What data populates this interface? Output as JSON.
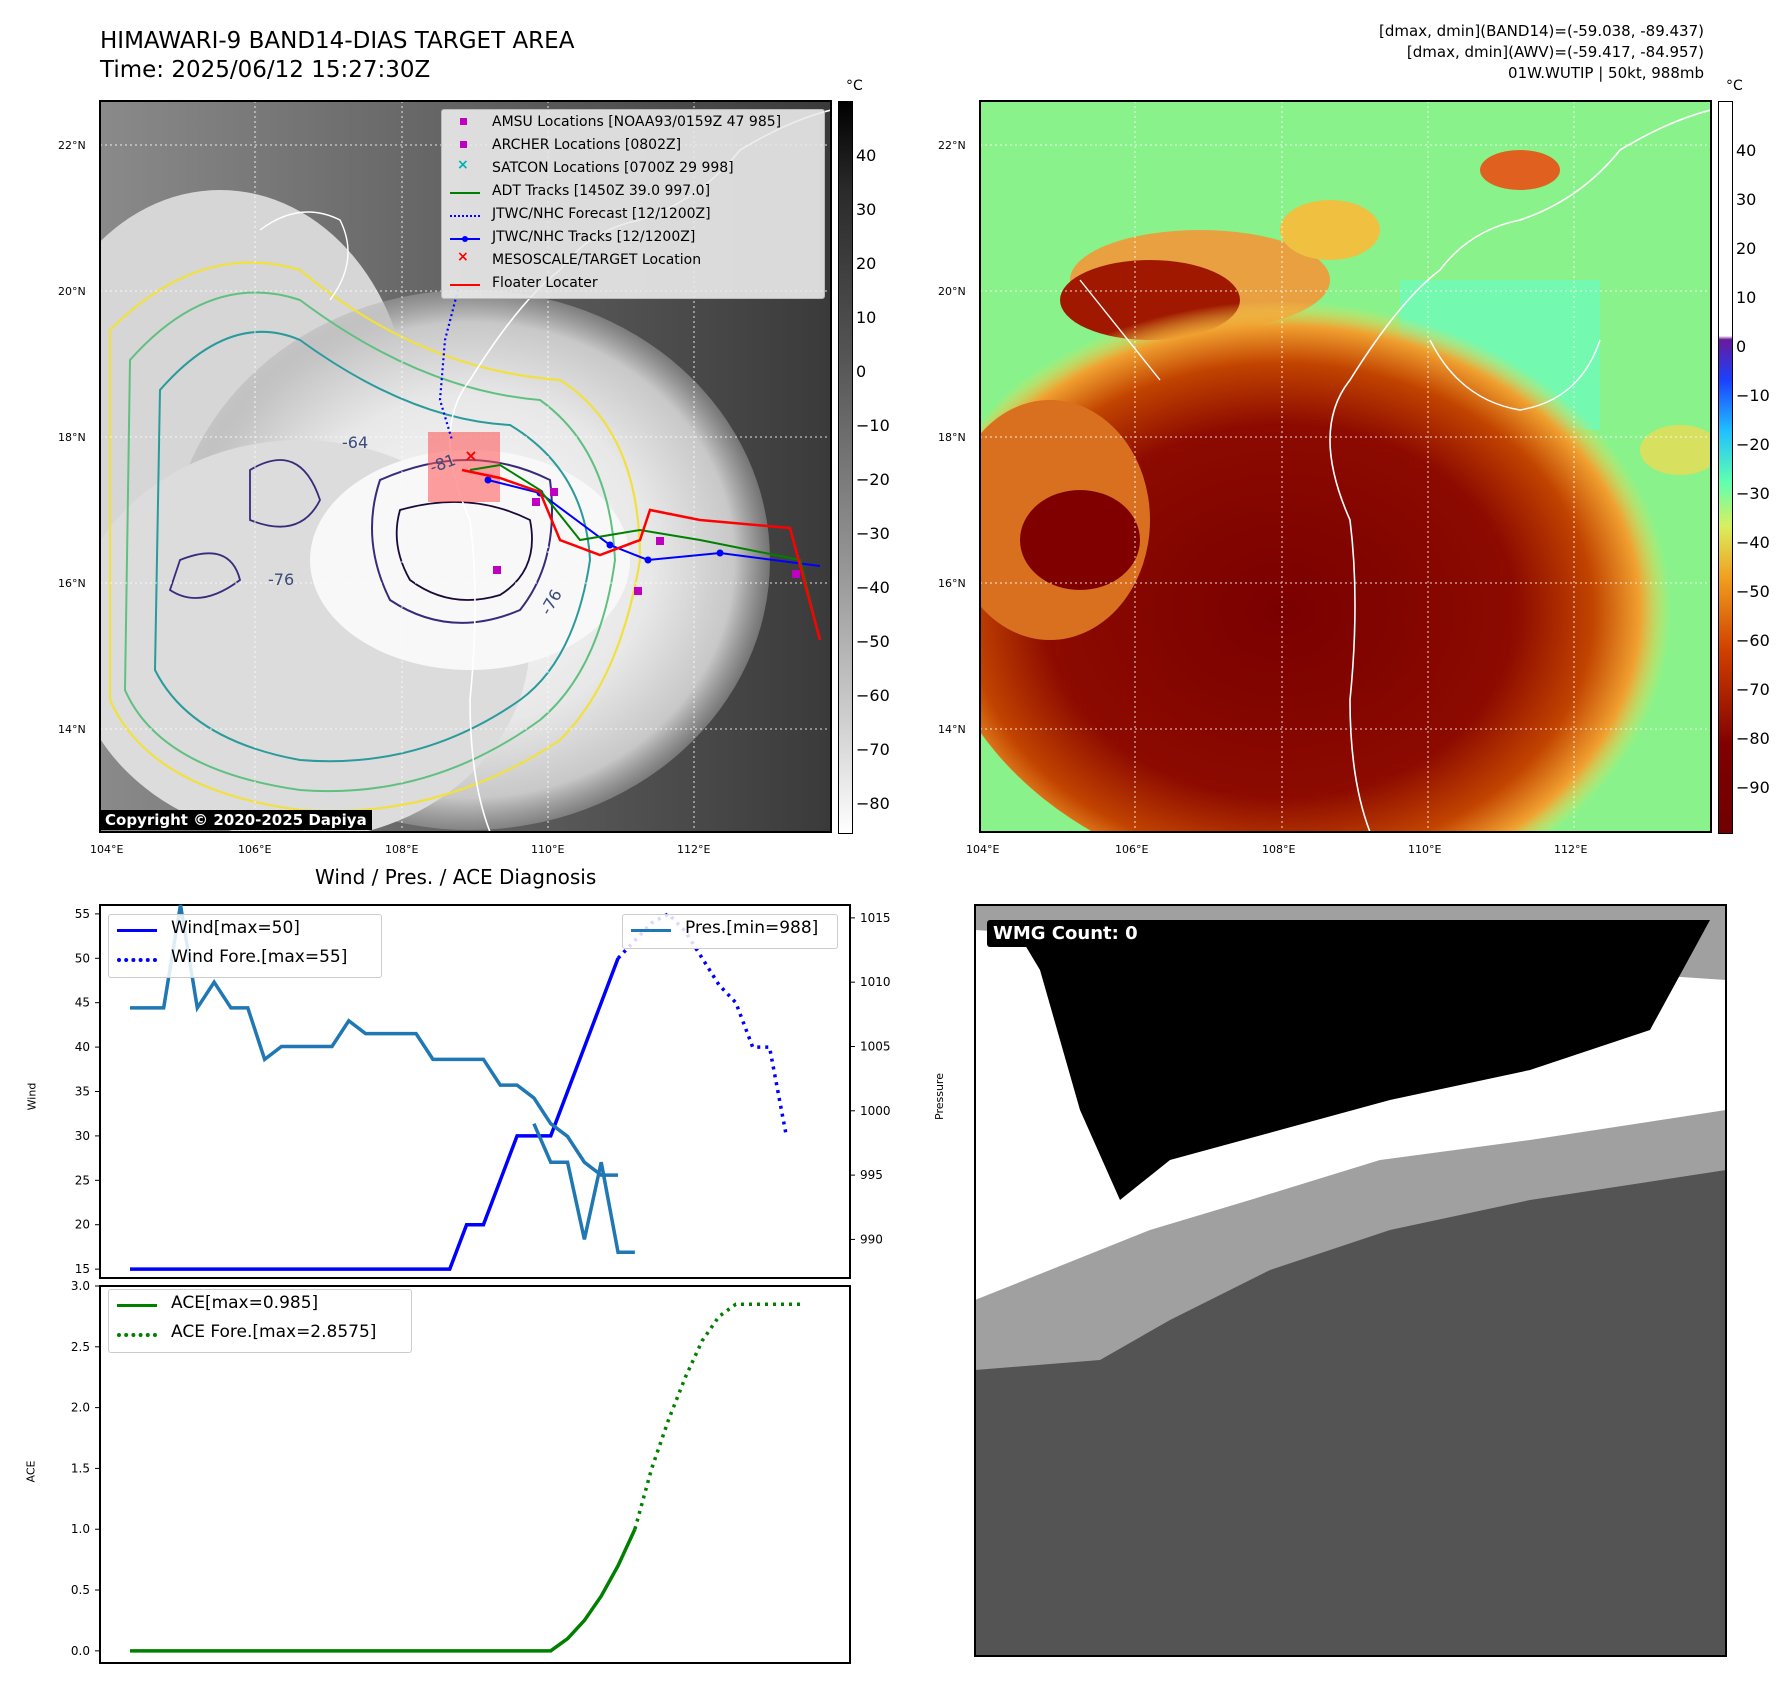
{
  "header": {
    "title": "HIMAWARI-9 BAND14-DIAS TARGET AREA",
    "time": "Time: 2025/06/12 15:27:30Z",
    "stats_band14": "[dmax, dmin](BAND14)=(-59.038, -89.437)",
    "stats_awv": "[dmax, dmin](AWV)=(-59.417, -84.957)",
    "storm": "01W.WUTIP | 50kt, 988mb"
  },
  "map_ir": {
    "lat_labels": [
      "22°N",
      "20°N",
      "18°N",
      "16°N",
      "14°N"
    ],
    "lon_labels": [
      "104°E",
      "106°E",
      "108°E",
      "110°E",
      "112°E"
    ],
    "contour_labels": [
      "-64",
      "-81",
      "-76",
      "-76"
    ],
    "colorbar_unit": "°C",
    "colorbar_ticks": [
      "40",
      "30",
      "20",
      "10",
      "0",
      "−10",
      "−20",
      "−30",
      "−40",
      "−50",
      "−60",
      "−70",
      "−80"
    ],
    "copyright": "Copyright © 2020-2025 Dapiya",
    "legend": [
      {
        "label": "AMSU Locations [NOAA93/0159Z 47 985]",
        "color": "#c000c0",
        "marker": "square"
      },
      {
        "label": "ARCHER Locations [0802Z]",
        "color": "#c000c0",
        "marker": "square"
      },
      {
        "label": "SATCON Locations [0700Z 29 998]",
        "color": "#00b0b0",
        "marker": "x"
      },
      {
        "label": "ADT Tracks [1450Z 39.0 997.0]",
        "color": "#008000",
        "marker": "line"
      },
      {
        "label": "JTWC/NHC Forecast [12/1200Z]",
        "color": "#0000ff",
        "marker": "dotted"
      },
      {
        "label": "JTWC/NHC Tracks [12/1200Z]",
        "color": "#0000ff",
        "marker": "line-dot"
      },
      {
        "label": "MESOSCALE/TARGET Location",
        "color": "#ff0000",
        "marker": "x"
      },
      {
        "label": "Floater Locater",
        "color": "#ff0000",
        "marker": "line"
      }
    ]
  },
  "map_awv": {
    "lat_labels": [
      "22°N",
      "20°N",
      "18°N",
      "16°N",
      "14°N"
    ],
    "lon_labels": [
      "104°E",
      "106°E",
      "108°E",
      "110°E",
      "112°E"
    ],
    "colorbar_unit": "°C",
    "colorbar_ticks": [
      "40",
      "30",
      "20",
      "10",
      "0",
      "−10",
      "−20",
      "−30",
      "−40",
      "−50",
      "−60",
      "−70",
      "−80",
      "−90"
    ]
  },
  "wmg": {
    "label": "WMG Count: 0"
  },
  "chart_data": [
    {
      "type": "line",
      "title": "Wind / Pres. / ACE Diagnosis",
      "ylabel": "Wind",
      "y2label": "Pressure",
      "ylim": [
        14,
        56
      ],
      "y2lim": [
        987,
        1016
      ],
      "yticks": [
        "55",
        "50",
        "45",
        "40",
        "35",
        "30",
        "25",
        "20",
        "15"
      ],
      "y2ticks": [
        "1015",
        "1010",
        "1005",
        "1000",
        "995",
        "990"
      ],
      "series": [
        {
          "name": "Wind[max=50]",
          "color": "#0000ff",
          "style": "solid",
          "x": [
            0,
            1,
            2,
            3,
            4,
            5,
            6,
            7,
            8,
            9,
            10,
            11,
            12,
            13,
            14,
            15,
            16,
            17,
            18,
            19,
            20,
            21,
            22,
            23,
            24,
            25,
            26,
            27,
            28,
            29
          ],
          "y": [
            15,
            15,
            15,
            15,
            15,
            15,
            15,
            15,
            15,
            15,
            15,
            15,
            15,
            15,
            15,
            15,
            15,
            15,
            15,
            15,
            20,
            20,
            25,
            30,
            30,
            30,
            35,
            40,
            45,
            50
          ]
        },
        {
          "name": "Wind Fore.[max=55]",
          "color": "#0000ff",
          "style": "dotted",
          "x": [
            29,
            30,
            31,
            32,
            33,
            34,
            35,
            36,
            37,
            38,
            39
          ],
          "y": [
            50,
            52,
            54,
            55,
            53,
            50,
            47,
            45,
            40,
            40,
            30
          ]
        },
        {
          "name": "Pres.[min=988]",
          "color": "#1f77b4",
          "style": "solid",
          "axis": "right",
          "x": [
            0,
            1,
            2,
            3,
            4,
            5,
            6,
            7,
            8,
            9,
            10,
            11,
            12,
            13,
            14,
            15,
            16,
            17,
            18,
            19,
            20,
            21,
            22,
            23,
            24,
            25,
            26,
            27,
            28,
            29
          ],
          "y": [
            1008,
            1008,
            1008,
            1016,
            1008,
            1010,
            1008,
            1008,
            1004,
            1005,
            1005,
            1005,
            1005,
            1007,
            1006,
            1006,
            1006,
            1006,
            1004,
            1004,
            1004,
            1004,
            1002,
            1002,
            1001,
            999,
            998,
            996,
            995,
            995
          ]
        },
        {
          "name": "",
          "color": "#1f77b4",
          "style": "solid",
          "axis": "right",
          "x": [
            24,
            25,
            26,
            27,
            28,
            29,
            30
          ],
          "y": [
            999,
            996,
            996,
            990,
            996,
            989,
            989
          ]
        }
      ]
    },
    {
      "type": "line",
      "ylabel": "ACE",
      "ylim": [
        -0.1,
        3.0
      ],
      "yticks": [
        "3.0",
        "2.5",
        "2.0",
        "1.5",
        "1.0",
        "0.5",
        "0.0"
      ],
      "series": [
        {
          "name": "ACE[max=0.985]",
          "color": "#008000",
          "style": "solid",
          "x": [
            0,
            2,
            4,
            6,
            8,
            10,
            12,
            14,
            16,
            18,
            20,
            22,
            23,
            24,
            25,
            26,
            27,
            28,
            29,
            30
          ],
          "y": [
            0,
            0,
            0,
            0,
            0,
            0,
            0,
            0,
            0,
            0,
            0,
            0,
            0,
            0,
            0,
            0.1,
            0.25,
            0.45,
            0.7,
            1.0
          ]
        },
        {
          "name": "ACE Fore.[max=2.8575]",
          "color": "#008000",
          "style": "dotted",
          "x": [
            30,
            31,
            32,
            33,
            34,
            35,
            36,
            37,
            38,
            39,
            40
          ],
          "y": [
            1.0,
            1.5,
            1.9,
            2.25,
            2.55,
            2.75,
            2.85,
            2.85,
            2.85,
            2.85,
            2.85
          ]
        }
      ]
    }
  ]
}
